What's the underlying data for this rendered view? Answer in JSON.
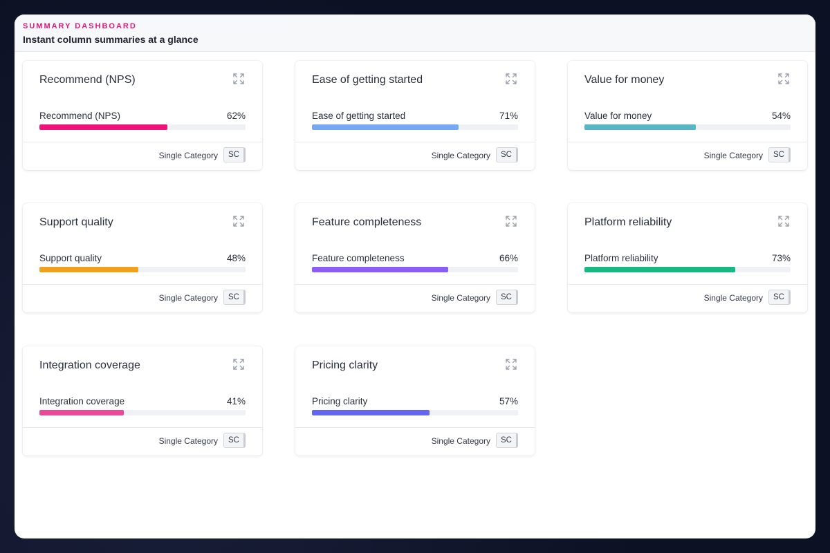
{
  "header": {
    "eyebrow": "SUMMARY DASHBOARD",
    "title": "Instant column summaries at a glance"
  },
  "cards": [
    {
      "title": "Recommend (NPS)",
      "label": "Recommend (NPS)",
      "pct": "62%",
      "value": 62,
      "color": "#f0147a",
      "footer": "Single Category",
      "badge": "SC"
    },
    {
      "title": "Ease of getting started",
      "label": "Ease of getting started",
      "pct": "71%",
      "value": 71,
      "color": "#76a7f2",
      "footer": "Single Category",
      "badge": "SC"
    },
    {
      "title": "Value for money",
      "label": "Value for money",
      "pct": "54%",
      "value": 54,
      "color": "#56b6c2",
      "footer": "Single Category",
      "badge": "SC"
    },
    {
      "title": "Support quality",
      "label": "Support quality",
      "pct": "48%",
      "value": 48,
      "color": "#f0a21f",
      "footer": "Single Category",
      "badge": "SC"
    },
    {
      "title": "Feature completeness",
      "label": "Feature completeness",
      "pct": "66%",
      "value": 66,
      "color": "#8b5cf6",
      "footer": "Single Category",
      "badge": "SC"
    },
    {
      "title": "Platform reliability",
      "label": "Platform reliability",
      "pct": "73%",
      "value": 73,
      "color": "#17b882",
      "footer": "Single Category",
      "badge": "SC"
    },
    {
      "title": "Integration coverage",
      "label": "Integration coverage",
      "pct": "41%",
      "value": 41,
      "color": "#ec4899",
      "footer": "Single Category",
      "badge": "SC"
    },
    {
      "title": "Pricing clarity",
      "label": "Pricing clarity",
      "pct": "57%",
      "value": 57,
      "color": "#6366f1",
      "footer": "Single Category",
      "badge": "SC"
    }
  ],
  "icons": {
    "expand": "expand-icon"
  }
}
